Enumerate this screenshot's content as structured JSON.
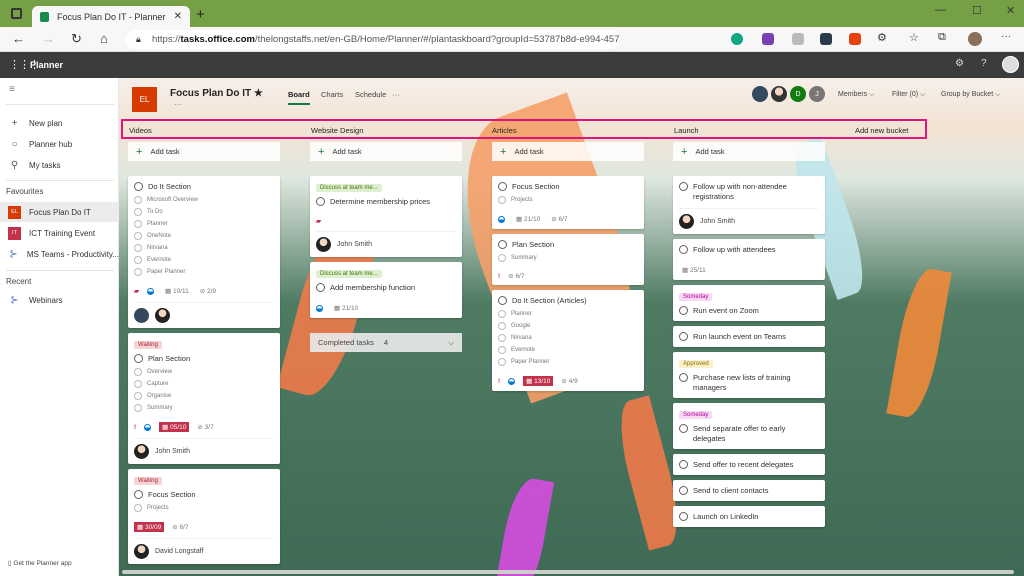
{
  "browser": {
    "tab_title": "Focus Plan Do IT - Planner",
    "url_prefix": "https://",
    "url_domain": "tasks.office.com",
    "url_rest": "/thelongstaffs.net/en-GB/Home/Planner/#/plantaskboard?groupId=53787b8d-e994-457a-a0e..."
  },
  "app": {
    "name": "Planner"
  },
  "sidebar": {
    "items": [
      {
        "label": "New plan",
        "icon": "plus-icon"
      },
      {
        "label": "Planner hub",
        "icon": "circle-icon"
      },
      {
        "label": "My tasks",
        "icon": "person-icon"
      }
    ],
    "favourites_heading": "Favourites",
    "favourites": [
      {
        "label": "Focus Plan Do IT",
        "badge": "EL",
        "color": "#d83b01",
        "active": true
      },
      {
        "label": "ICT Training Event",
        "badge": "IT",
        "color": "#c4314b"
      },
      {
        "label": "MS Teams - Productivity...",
        "badge": "",
        "color": ""
      }
    ],
    "recent_heading": "Recent",
    "recent": [
      {
        "label": "Webinars"
      }
    ],
    "get_app": "Get the Planner app"
  },
  "plan": {
    "badge": "EL",
    "title": "Focus Plan Do IT",
    "tabs": [
      "Board",
      "Charts",
      "Schedule"
    ],
    "members": [
      "D",
      "J"
    ],
    "members_label": "Members",
    "filter_label": "Filter (0)",
    "group_label": "Group by Bucket",
    "add_bucket": "Add new bucket"
  },
  "add_task_label": "Add task",
  "buckets": [
    {
      "name": "Videos",
      "cards": [
        {
          "title": "Do It Section",
          "checklist": [
            "Microsoft Overview",
            "To Do",
            "Planner",
            "OneNote",
            "Nirvana",
            "Evernote",
            "Paper Planner"
          ],
          "attach": true,
          "progress": true,
          "due": "10/11",
          "count": "2/9",
          "avatars": 2
        },
        {
          "label": "Waiting",
          "labelColor": "pink",
          "title": "Plan Section",
          "checklist": [
            "Overview",
            "Capture",
            "Organise",
            "Summary"
          ],
          "priority": true,
          "progress": true,
          "due": "05/10",
          "late": true,
          "count": "3/7",
          "assignee": "John Smith"
        },
        {
          "label": "Waiting",
          "labelColor": "pink",
          "title": "Focus Section",
          "checklist": [
            "Projects"
          ],
          "due": "30/09",
          "late": true,
          "count": "6/7",
          "assignee": "David Longstaff"
        }
      ]
    },
    {
      "name": "Website Design",
      "cards": [
        {
          "label": "Discuss at team me...",
          "labelColor": "green",
          "title": "Determine membership prices",
          "attach": true,
          "assignee": "John Smith"
        },
        {
          "label": "Discuss at team me...",
          "labelColor": "green",
          "title": "Add membership function",
          "progress": true,
          "due": "21/10"
        }
      ],
      "completed": {
        "label": "Completed tasks",
        "count": "4"
      }
    },
    {
      "name": "Articles",
      "cards": [
        {
          "title": "Focus Section",
          "checklist": [
            "Projects"
          ],
          "progress": true,
          "due": "21/10",
          "count": "6/7"
        },
        {
          "title": "Plan Section",
          "checklist": [
            "Summary"
          ],
          "priority": true,
          "count": "6/7"
        },
        {
          "title": "Do It Section (Articles)",
          "checklist": [
            "Planner",
            "Google",
            "Nirvana",
            "Evernote",
            "Paper Planner"
          ],
          "priority": true,
          "progress": true,
          "due": "13/10",
          "late": true,
          "count": "4/9"
        }
      ]
    },
    {
      "name": "Launch",
      "cards": [
        {
          "title": "Follow up with non-attendee registrations",
          "assignee": "John Smith"
        },
        {
          "title": "Follow up with attendees",
          "due": "25/11"
        },
        {
          "label": "Someday",
          "labelColor": "magenta",
          "title": "Run event on Zoom"
        },
        {
          "title": "Run launch event on Teams"
        },
        {
          "label": "Approved",
          "labelColor": "yellow",
          "title": "Purchase new lists of training managers"
        },
        {
          "label": "Someday",
          "labelColor": "magenta",
          "title": "Send separate offer to early delegates"
        },
        {
          "title": "Send offer to recent delegates"
        },
        {
          "title": "Send to client contacts"
        },
        {
          "title": "Launch on LinkedIn"
        }
      ]
    }
  ],
  "colors": {
    "titlebar": "#76a046",
    "accent": "#107c41",
    "highlight": "#e0157a",
    "late": "#c4314b"
  }
}
